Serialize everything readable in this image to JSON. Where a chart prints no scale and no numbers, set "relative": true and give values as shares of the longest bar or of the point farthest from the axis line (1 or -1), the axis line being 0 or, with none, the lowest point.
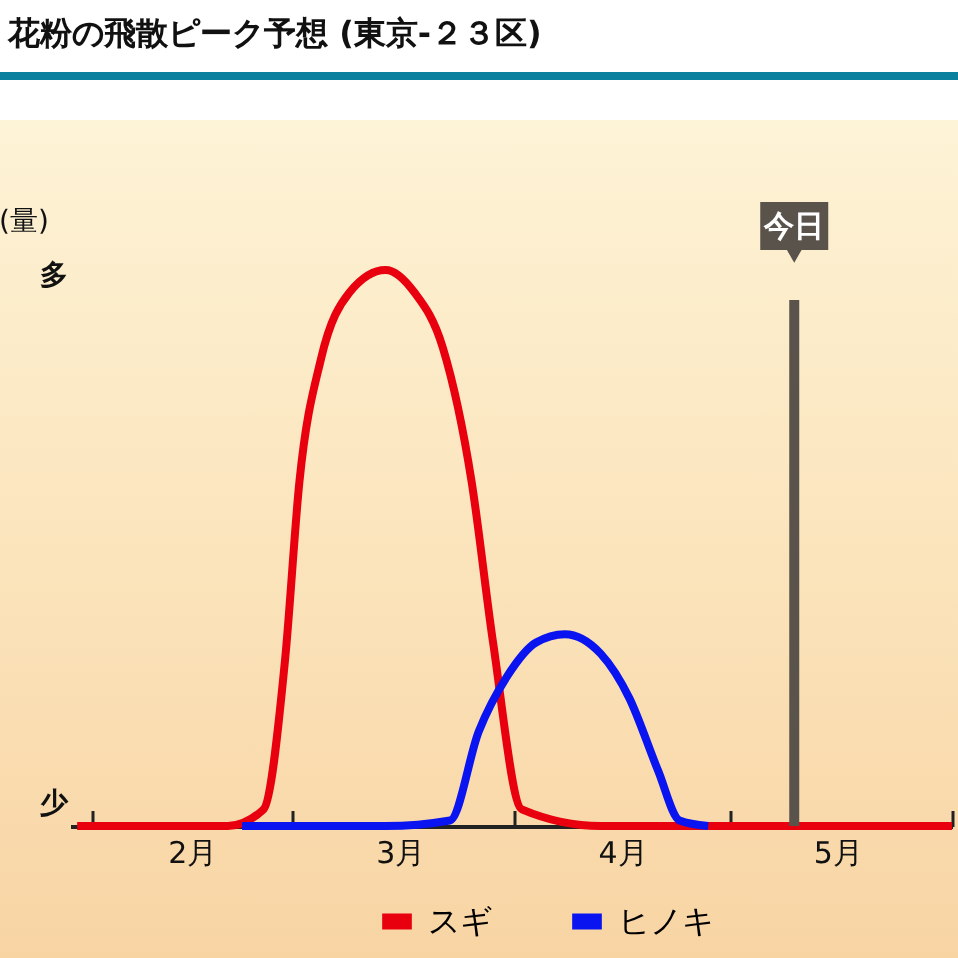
{
  "chart_data": {
    "type": "line",
    "title": "花粉の飛散ピーク予想 (東京-２３区)",
    "ylabel": "(量)",
    "relative": true,
    "legend": "bottom",
    "grid": false,
    "annotations": [
      "多",
      "少"
    ],
    "xlim": [
      "--01-29",
      "--06-01"
    ],
    "xticks": [
      {
        "value": "--02-01",
        "label": null
      },
      {
        "value": "--02-15",
        "label": "2月"
      },
      {
        "value": "--03-01",
        "label": null
      },
      {
        "value": "--03-16",
        "label": "3月"
      },
      {
        "value": "--04-01",
        "label": null
      },
      {
        "value": "--04-16",
        "label": "4月"
      },
      {
        "value": "--05-01",
        "label": null
      },
      {
        "value": "--05-16",
        "label": "5月"
      },
      {
        "value": "--06-01",
        "label": null
      }
    ],
    "ref_lines": [
      {
        "axis": "x",
        "value": "--05-10",
        "label": "今日",
        "color": "#5a534c"
      }
    ],
    "series": [
      {
        "name": "スギ",
        "color": "#e8000f",
        "x": [
          "--01-30",
          "--02-20",
          "--02-25",
          "--02-28",
          "--03-02",
          "--03-05",
          "--03-09",
          "--03-14",
          "--03-18",
          "--03-22",
          "--03-26",
          "--03-29",
          "--04-02",
          "--04-13",
          "--06-01"
        ],
        "values": [
          0,
          0,
          0.03,
          0.3,
          0.62,
          0.84,
          0.96,
          1,
          0.96,
          0.86,
          0.62,
          0.33,
          0.03,
          0,
          0
        ]
      },
      {
        "name": "ヒノキ",
        "color": "#0a14f0",
        "x": [
          "--02-22",
          "--03-14",
          "--03-23",
          "--03-27",
          "--03-31",
          "--04-04",
          "--04-08",
          "--04-13",
          "--04-17",
          "--04-21",
          "--04-24",
          "--04-28"
        ],
        "values": [
          0,
          0,
          0.01,
          0.17,
          0.27,
          0.33,
          0.345,
          0.31,
          0.23,
          0.1,
          0.01,
          0
        ]
      }
    ]
  }
}
